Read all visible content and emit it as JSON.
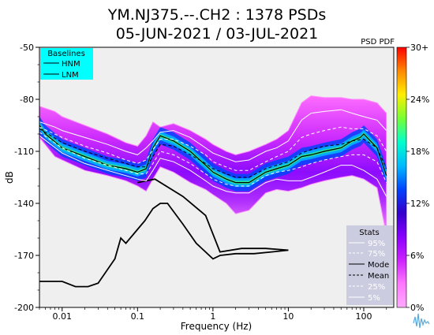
{
  "title_line1": "YM.NJ375.--.CH2 : 1378 PSDs",
  "title_line2": "05-JUN-2021 / 03-JUL-2021",
  "psd_pdf_label": "PSD PDF",
  "chart_data": {
    "type": "heatmap",
    "xlabel": "Frequency (Hz)",
    "ylabel": "dB",
    "xscale": "log",
    "xlim": [
      0.005,
      250
    ],
    "ylim": [
      -200,
      -50
    ],
    "x_ticks": [
      {
        "value": 0.01,
        "label": "0.01"
      },
      {
        "value": 0.1,
        "label": "0.1"
      },
      {
        "value": 1,
        "label": "1"
      },
      {
        "value": 10,
        "label": "10"
      },
      {
        "value": 100,
        "label": "100"
      }
    ],
    "y_ticks": [
      {
        "value": -50,
        "label": "-50"
      },
      {
        "value": -80,
        "label": "-80"
      },
      {
        "value": -110,
        "label": "-110"
      },
      {
        "value": -140,
        "label": "-140"
      },
      {
        "value": -170,
        "label": "-170"
      },
      {
        "value": -200,
        "label": "-200"
      }
    ],
    "colorbar": {
      "ticks": [
        "30+",
        "24%",
        "18%",
        "12%",
        "6%",
        "0%"
      ],
      "colors": [
        "#ff0000",
        "#ff8800",
        "#ffee00",
        "#77ff33",
        "#00ffcc",
        "#00bbff",
        "#0044ff",
        "#3300cc",
        "#8800ff",
        "#cc22ff",
        "#ff77ff",
        "#ffaaff"
      ]
    },
    "baselines_legend": {
      "title": "Baselines",
      "entries": [
        "HNM",
        "LNM"
      ],
      "bg_color": "#00ffff"
    },
    "stats_legend": {
      "title": "Stats",
      "entries": [
        "95%",
        "75%",
        "Mode",
        "Mean",
        "25%",
        "5%"
      ],
      "bg_color": "#cccce0"
    },
    "series": [
      {
        "name": "HNM",
        "x": [
          0.1,
          0.17,
          0.4,
          0.8,
          1.24,
          2.4,
          4.3,
          5,
          10
        ],
        "y": [
          -128,
          -126,
          -136,
          -147,
          -168,
          -166,
          -166,
          -166,
          -167
        ]
      },
      {
        "name": "LNM",
        "x": [
          0.005,
          0.01,
          0.015,
          0.022,
          0.03,
          0.05,
          0.06,
          0.07,
          0.1,
          0.125,
          0.16,
          0.2,
          0.25,
          0.4,
          0.6,
          1,
          1.25,
          2,
          3.5,
          6,
          10
        ],
        "y": [
          -185,
          -185,
          -188,
          -188,
          -186,
          -172,
          -160,
          -163,
          -155,
          -150,
          -143,
          -140,
          -140,
          -152,
          -163,
          -172,
          -170,
          -169,
          -169,
          -168,
          -167
        ]
      },
      {
        "name": "Mode",
        "x": [
          0.005,
          0.006,
          0.01,
          0.02,
          0.04,
          0.07,
          0.1,
          0.13,
          0.16,
          0.2,
          0.3,
          0.5,
          0.8,
          1,
          1.5,
          2,
          3,
          5,
          7,
          10,
          15,
          20,
          30,
          50,
          70,
          90,
          100,
          150,
          200
        ],
        "y": [
          -95,
          -100,
          -108,
          -113,
          -118,
          -120,
          -122,
          -120,
          -108,
          -101,
          -104,
          -110,
          -118,
          -122,
          -126,
          -128,
          -128,
          -122,
          -120,
          -118,
          -113,
          -112,
          -110,
          -108,
          -104,
          -102,
          -100,
          -108,
          -124
        ]
      },
      {
        "name": "Mean",
        "x": [
          0.005,
          0.01,
          0.02,
          0.04,
          0.07,
          0.1,
          0.13,
          0.16,
          0.2,
          0.3,
          0.5,
          0.8,
          1,
          1.5,
          2,
          3,
          5,
          7,
          10,
          15,
          20,
          30,
          50,
          70,
          100,
          150,
          200
        ],
        "y": [
          -97,
          -105,
          -110,
          -114,
          -117,
          -119,
          -119,
          -113,
          -106,
          -107,
          -112,
          -117,
          -120,
          -123,
          -125,
          -125,
          -120,
          -118,
          -116,
          -111,
          -109,
          -107,
          -106,
          -104,
          -103,
          -108,
          -120
        ]
      },
      {
        "name": "95%",
        "x": [
          0.005,
          0.008,
          0.01,
          0.02,
          0.04,
          0.07,
          0.1,
          0.13,
          0.16,
          0.2,
          0.3,
          0.5,
          0.8,
          1,
          1.5,
          2,
          3,
          5,
          7,
          10,
          15,
          20,
          30,
          50,
          70,
          100,
          150,
          200
        ],
        "y": [
          -93,
          -96,
          -98,
          -102,
          -106,
          -110,
          -112,
          -108,
          -104,
          -99,
          -98,
          -102,
          -108,
          -111,
          -114,
          -116,
          -115,
          -110,
          -108,
          -104,
          -92,
          -88,
          -87,
          -86,
          -88,
          -90,
          -92,
          -98
        ]
      },
      {
        "name": "75%",
        "x": [
          0.005,
          0.01,
          0.02,
          0.04,
          0.07,
          0.1,
          0.13,
          0.16,
          0.2,
          0.3,
          0.5,
          0.8,
          1,
          1.5,
          2,
          3,
          5,
          7,
          10,
          15,
          20,
          30,
          50,
          70,
          100,
          150,
          200
        ],
        "y": [
          -96,
          -102,
          -107,
          -111,
          -115,
          -117,
          -115,
          -109,
          -103,
          -103,
          -107,
          -112,
          -116,
          -119,
          -121,
          -121,
          -116,
          -113,
          -110,
          -102,
          -100,
          -98,
          -96,
          -97,
          -97,
          -101,
          -110
        ]
      },
      {
        "name": "25%",
        "x": [
          0.005,
          0.01,
          0.02,
          0.04,
          0.07,
          0.1,
          0.13,
          0.16,
          0.2,
          0.3,
          0.5,
          0.8,
          1,
          1.5,
          2,
          3,
          5,
          7,
          10,
          15,
          20,
          30,
          50,
          70,
          100,
          150,
          200
        ],
        "y": [
          -99,
          -108,
          -114,
          -118,
          -121,
          -123,
          -123,
          -117,
          -110,
          -112,
          -117,
          -123,
          -126,
          -129,
          -130,
          -130,
          -124,
          -122,
          -121,
          -119,
          -117,
          -115,
          -113,
          -112,
          -112,
          -116,
          -128
        ]
      },
      {
        "name": "5%",
        "x": [
          0.005,
          0.01,
          0.02,
          0.04,
          0.07,
          0.1,
          0.13,
          0.16,
          0.2,
          0.3,
          0.5,
          0.8,
          1,
          1.5,
          2,
          3,
          5,
          7,
          10,
          15,
          20,
          30,
          50,
          70,
          100,
          150,
          200
        ],
        "y": [
          -101,
          -111,
          -117,
          -121,
          -124,
          -126,
          -127,
          -121,
          -114,
          -116,
          -121,
          -127,
          -130,
          -133,
          -134,
          -134,
          -128,
          -126,
          -127,
          -127,
          -125,
          -122,
          -118,
          -118,
          -121,
          -126,
          -136
        ]
      }
    ],
    "density_band": {
      "x": [
        0.005,
        0.008,
        0.01,
        0.02,
        0.04,
        0.07,
        0.1,
        0.13,
        0.16,
        0.2,
        0.3,
        0.5,
        0.8,
        1,
        1.5,
        2,
        3,
        5,
        7,
        10,
        15,
        20,
        30,
        50,
        70,
        100,
        150,
        200
      ],
      "upper": [
        -84,
        -87,
        -90,
        -95,
        -100,
        -105,
        -107,
        -101,
        -93,
        -96,
        -94,
        -98,
        -103,
        -106,
        -110,
        -112,
        -110,
        -106,
        -103,
        -98,
        -82,
        -78,
        -79,
        -79,
        -80,
        -80,
        -82,
        -88
      ],
      "lower": [
        -102,
        -113,
        -115,
        -121,
        -124,
        -127,
        -130,
        -133,
        -126,
        -119,
        -122,
        -128,
        -132,
        -135,
        -140,
        -146,
        -144,
        -134,
        -132,
        -133,
        -131,
        -129,
        -127,
        -125,
        -124,
        -126,
        -131,
        -158
      ]
    }
  }
}
